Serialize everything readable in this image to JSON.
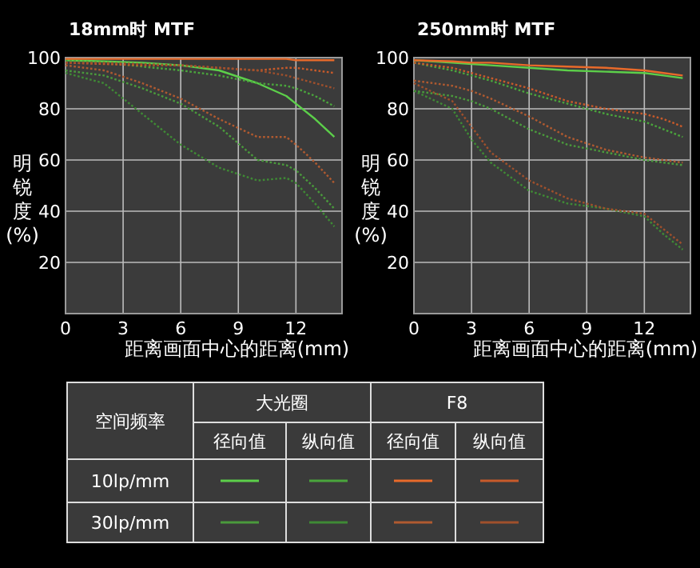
{
  "chart_data": [
    {
      "type": "line",
      "title": "18mm时  MTF",
      "xlabel": "距离画面中心的距离(mm)",
      "ylabel": "明锐度(%)",
      "xlim": [
        0,
        14.4
      ],
      "ylim": [
        0,
        100
      ],
      "xticks": [
        0,
        3,
        6,
        9,
        12
      ],
      "yticks": [
        20,
        40,
        60,
        80,
        100
      ],
      "grid": true,
      "x": [
        0,
        2,
        4,
        6,
        8,
        10,
        11.5,
        12,
        13,
        14
      ],
      "series": [
        {
          "color": "#5ccf4a",
          "line_style": "solid",
          "values": [
            99,
            98.5,
            98,
            97,
            95,
            90,
            85,
            82,
            76,
            69
          ]
        },
        {
          "color": "#4aa53c",
          "line_style": "dotted",
          "values": [
            99,
            98,
            96.5,
            95,
            93,
            90,
            89,
            88,
            85,
            81
          ]
        },
        {
          "color": "#e86a2a",
          "line_style": "solid",
          "values": [
            99.5,
            99.5,
            99.5,
            99.5,
            99.5,
            99.5,
            99.5,
            99,
            99,
            99
          ]
        },
        {
          "color": "#c85a2a",
          "line_style": "dotted",
          "values": [
            98,
            97.5,
            97,
            97,
            96,
            95,
            96,
            96,
            95,
            94
          ]
        },
        {
          "color": "#4a9a3c",
          "line_style": "dotted",
          "values": [
            95,
            93,
            88,
            82,
            73,
            60,
            58,
            56,
            49,
            41
          ]
        },
        {
          "color": "#3f8a35",
          "line_style": "dotted",
          "values": [
            94,
            90,
            78,
            66,
            57,
            52,
            53,
            51,
            43,
            34
          ]
        },
        {
          "color": "#b05a30",
          "line_style": "dotted",
          "values": [
            97,
            95,
            90,
            84,
            76,
            69,
            69,
            66,
            59,
            51
          ]
        },
        {
          "color": "#a0502c",
          "line_style": "dotted",
          "values": [
            98,
            98,
            97.5,
            97,
            96,
            95,
            93,
            92,
            90,
            88
          ]
        }
      ],
      "annotations": [
        "空间频率",
        "大光圈",
        "F8",
        "径向值",
        "纵向值",
        "径向值",
        "纵向值",
        "10lp/mm",
        "30lp/mm"
      ]
    },
    {
      "type": "line",
      "title": "250mm时  MTF",
      "xlabel": "距离画面中心的距离(mm)",
      "ylabel": "明锐度(%)",
      "xlim": [
        0,
        14.4
      ],
      "ylim": [
        0,
        100
      ],
      "xticks": [
        0,
        3,
        6,
        9,
        12
      ],
      "yticks": [
        20,
        40,
        60,
        80,
        100
      ],
      "grid": true,
      "x": [
        0,
        2,
        3,
        4,
        6,
        8,
        10,
        12,
        13,
        14
      ],
      "series": [
        {
          "color": "#5ccf4a",
          "line_style": "solid",
          "values": [
            99,
            98,
            97.5,
            97,
            96,
            95,
            94.5,
            94,
            93,
            92
          ]
        },
        {
          "color": "#4aa53c",
          "line_style": "dotted",
          "values": [
            98,
            95,
            93,
            91,
            86,
            82,
            78,
            75,
            72,
            69
          ]
        },
        {
          "color": "#e86a2a",
          "line_style": "solid",
          "values": [
            99,
            98.5,
            98,
            98,
            97,
            96.5,
            96,
            95,
            94,
            93
          ]
        },
        {
          "color": "#c85a2a",
          "line_style": "dotted",
          "values": [
            98,
            96,
            94,
            92,
            88,
            83,
            80,
            78,
            76,
            73
          ]
        },
        {
          "color": "#4a9a3c",
          "line_style": "dotted",
          "values": [
            87,
            85,
            83,
            80,
            72,
            66,
            63,
            60,
            59,
            58
          ]
        },
        {
          "color": "#3f8a35",
          "line_style": "dotted",
          "values": [
            87,
            80,
            68,
            59,
            48,
            43,
            41,
            38,
            31,
            25
          ]
        },
        {
          "color": "#b05a30",
          "line_style": "dotted",
          "values": [
            91,
            89,
            87,
            84,
            77,
            69,
            64,
            61,
            60,
            59
          ]
        },
        {
          "color": "#a0502c",
          "line_style": "dotted",
          "values": [
            90,
            83,
            73,
            63,
            52,
            45,
            41,
            39,
            33,
            27
          ]
        }
      ]
    }
  ]
}
